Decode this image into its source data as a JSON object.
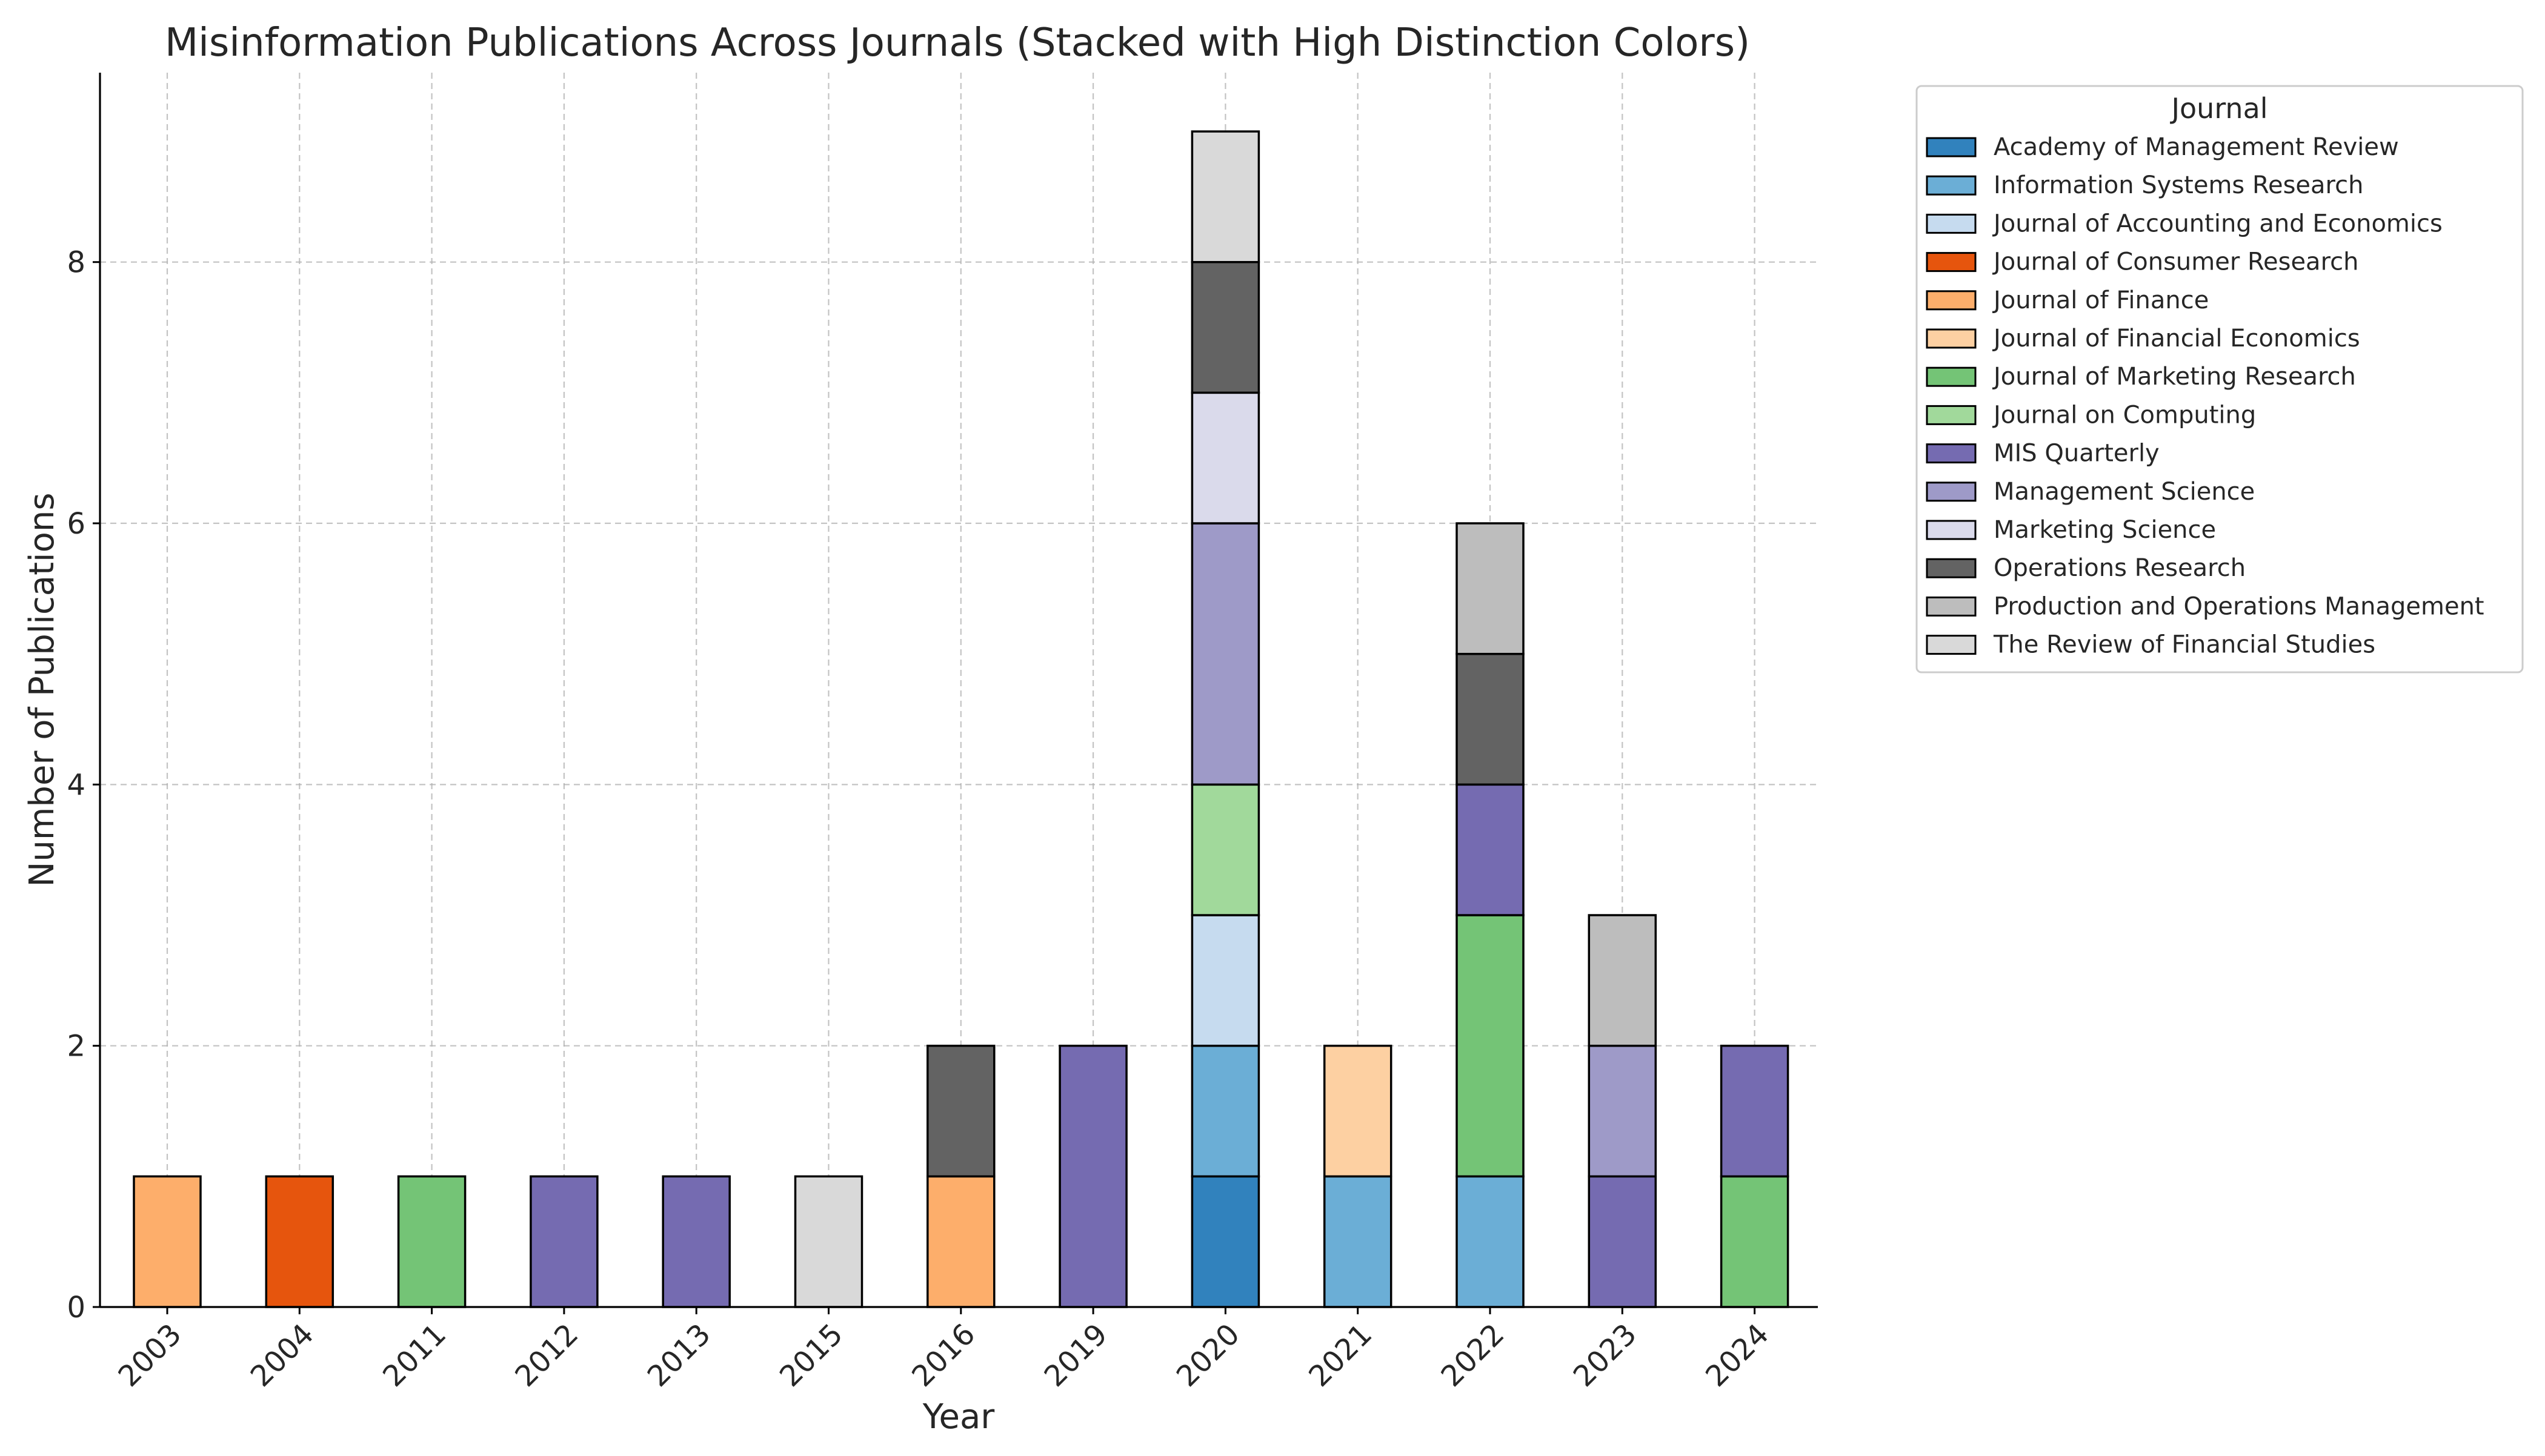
{
  "chart_data": {
    "type": "bar",
    "stacked": true,
    "title": "Misinformation Publications Across Journals (Stacked with High Distinction Colors)",
    "xlabel": "Year",
    "ylabel": "Number of Publications",
    "ylim": [
      0,
      9.45
    ],
    "yticks": [
      0,
      2,
      4,
      6,
      8
    ],
    "grid": true,
    "legend_title": "Journal",
    "legend_placement": "outside-upper-right",
    "categories": [
      "2003",
      "2004",
      "2011",
      "2012",
      "2013",
      "2015",
      "2016",
      "2019",
      "2020",
      "2021",
      "2022",
      "2023",
      "2024"
    ],
    "series": [
      {
        "name": "Academy of Management Review",
        "color": "#3182bd",
        "values": [
          0,
          0,
          0,
          0,
          0,
          0,
          0,
          0,
          1,
          0,
          0,
          0,
          0
        ]
      },
      {
        "name": "Information Systems Research",
        "color": "#6baed6",
        "values": [
          0,
          0,
          0,
          0,
          0,
          0,
          0,
          0,
          1,
          1,
          1,
          0,
          0
        ]
      },
      {
        "name": "Journal of Accounting and Economics",
        "color": "#c6dbef",
        "values": [
          0,
          0,
          0,
          0,
          0,
          0,
          0,
          0,
          1,
          0,
          0,
          0,
          0
        ]
      },
      {
        "name": "Journal of Consumer Research",
        "color": "#e6550d",
        "values": [
          0,
          1,
          0,
          0,
          0,
          0,
          0,
          0,
          0,
          0,
          0,
          0,
          0
        ]
      },
      {
        "name": "Journal of Finance",
        "color": "#fdae6b",
        "values": [
          1,
          0,
          0,
          0,
          0,
          0,
          1,
          0,
          0,
          0,
          0,
          0,
          0
        ]
      },
      {
        "name": "Journal of Financial Economics",
        "color": "#fdd0a2",
        "values": [
          0,
          0,
          0,
          0,
          0,
          0,
          0,
          0,
          0,
          1,
          0,
          0,
          0
        ]
      },
      {
        "name": "Journal of Marketing Research",
        "color": "#74c476",
        "values": [
          0,
          0,
          1,
          0,
          0,
          0,
          0,
          0,
          0,
          0,
          2,
          0,
          1
        ]
      },
      {
        "name": "Journal on Computing",
        "color": "#a1d99b",
        "values": [
          0,
          0,
          0,
          0,
          0,
          0,
          0,
          0,
          1,
          0,
          0,
          0,
          0
        ]
      },
      {
        "name": "MIS Quarterly",
        "color": "#756bb1",
        "values": [
          0,
          0,
          0,
          1,
          1,
          0,
          0,
          2,
          0,
          0,
          1,
          1,
          1
        ]
      },
      {
        "name": "Management Science",
        "color": "#9e9ac8",
        "values": [
          0,
          0,
          0,
          0,
          0,
          0,
          0,
          0,
          2,
          0,
          0,
          1,
          0
        ]
      },
      {
        "name": "Marketing Science",
        "color": "#dadaeb",
        "values": [
          0,
          0,
          0,
          0,
          0,
          0,
          0,
          0,
          1,
          0,
          0,
          0,
          0
        ]
      },
      {
        "name": "Operations Research",
        "color": "#636363",
        "values": [
          0,
          0,
          0,
          0,
          0,
          0,
          1,
          0,
          1,
          0,
          1,
          0,
          0
        ]
      },
      {
        "name": "Production and Operations Management",
        "color": "#bdbdbd",
        "values": [
          0,
          0,
          0,
          0,
          0,
          0,
          0,
          0,
          0,
          0,
          1,
          1,
          0
        ]
      },
      {
        "name": "The Review of Financial Studies",
        "color": "#d9d9d9",
        "values": [
          0,
          0,
          0,
          0,
          0,
          1,
          0,
          0,
          1,
          0,
          0,
          0,
          0
        ]
      }
    ]
  }
}
